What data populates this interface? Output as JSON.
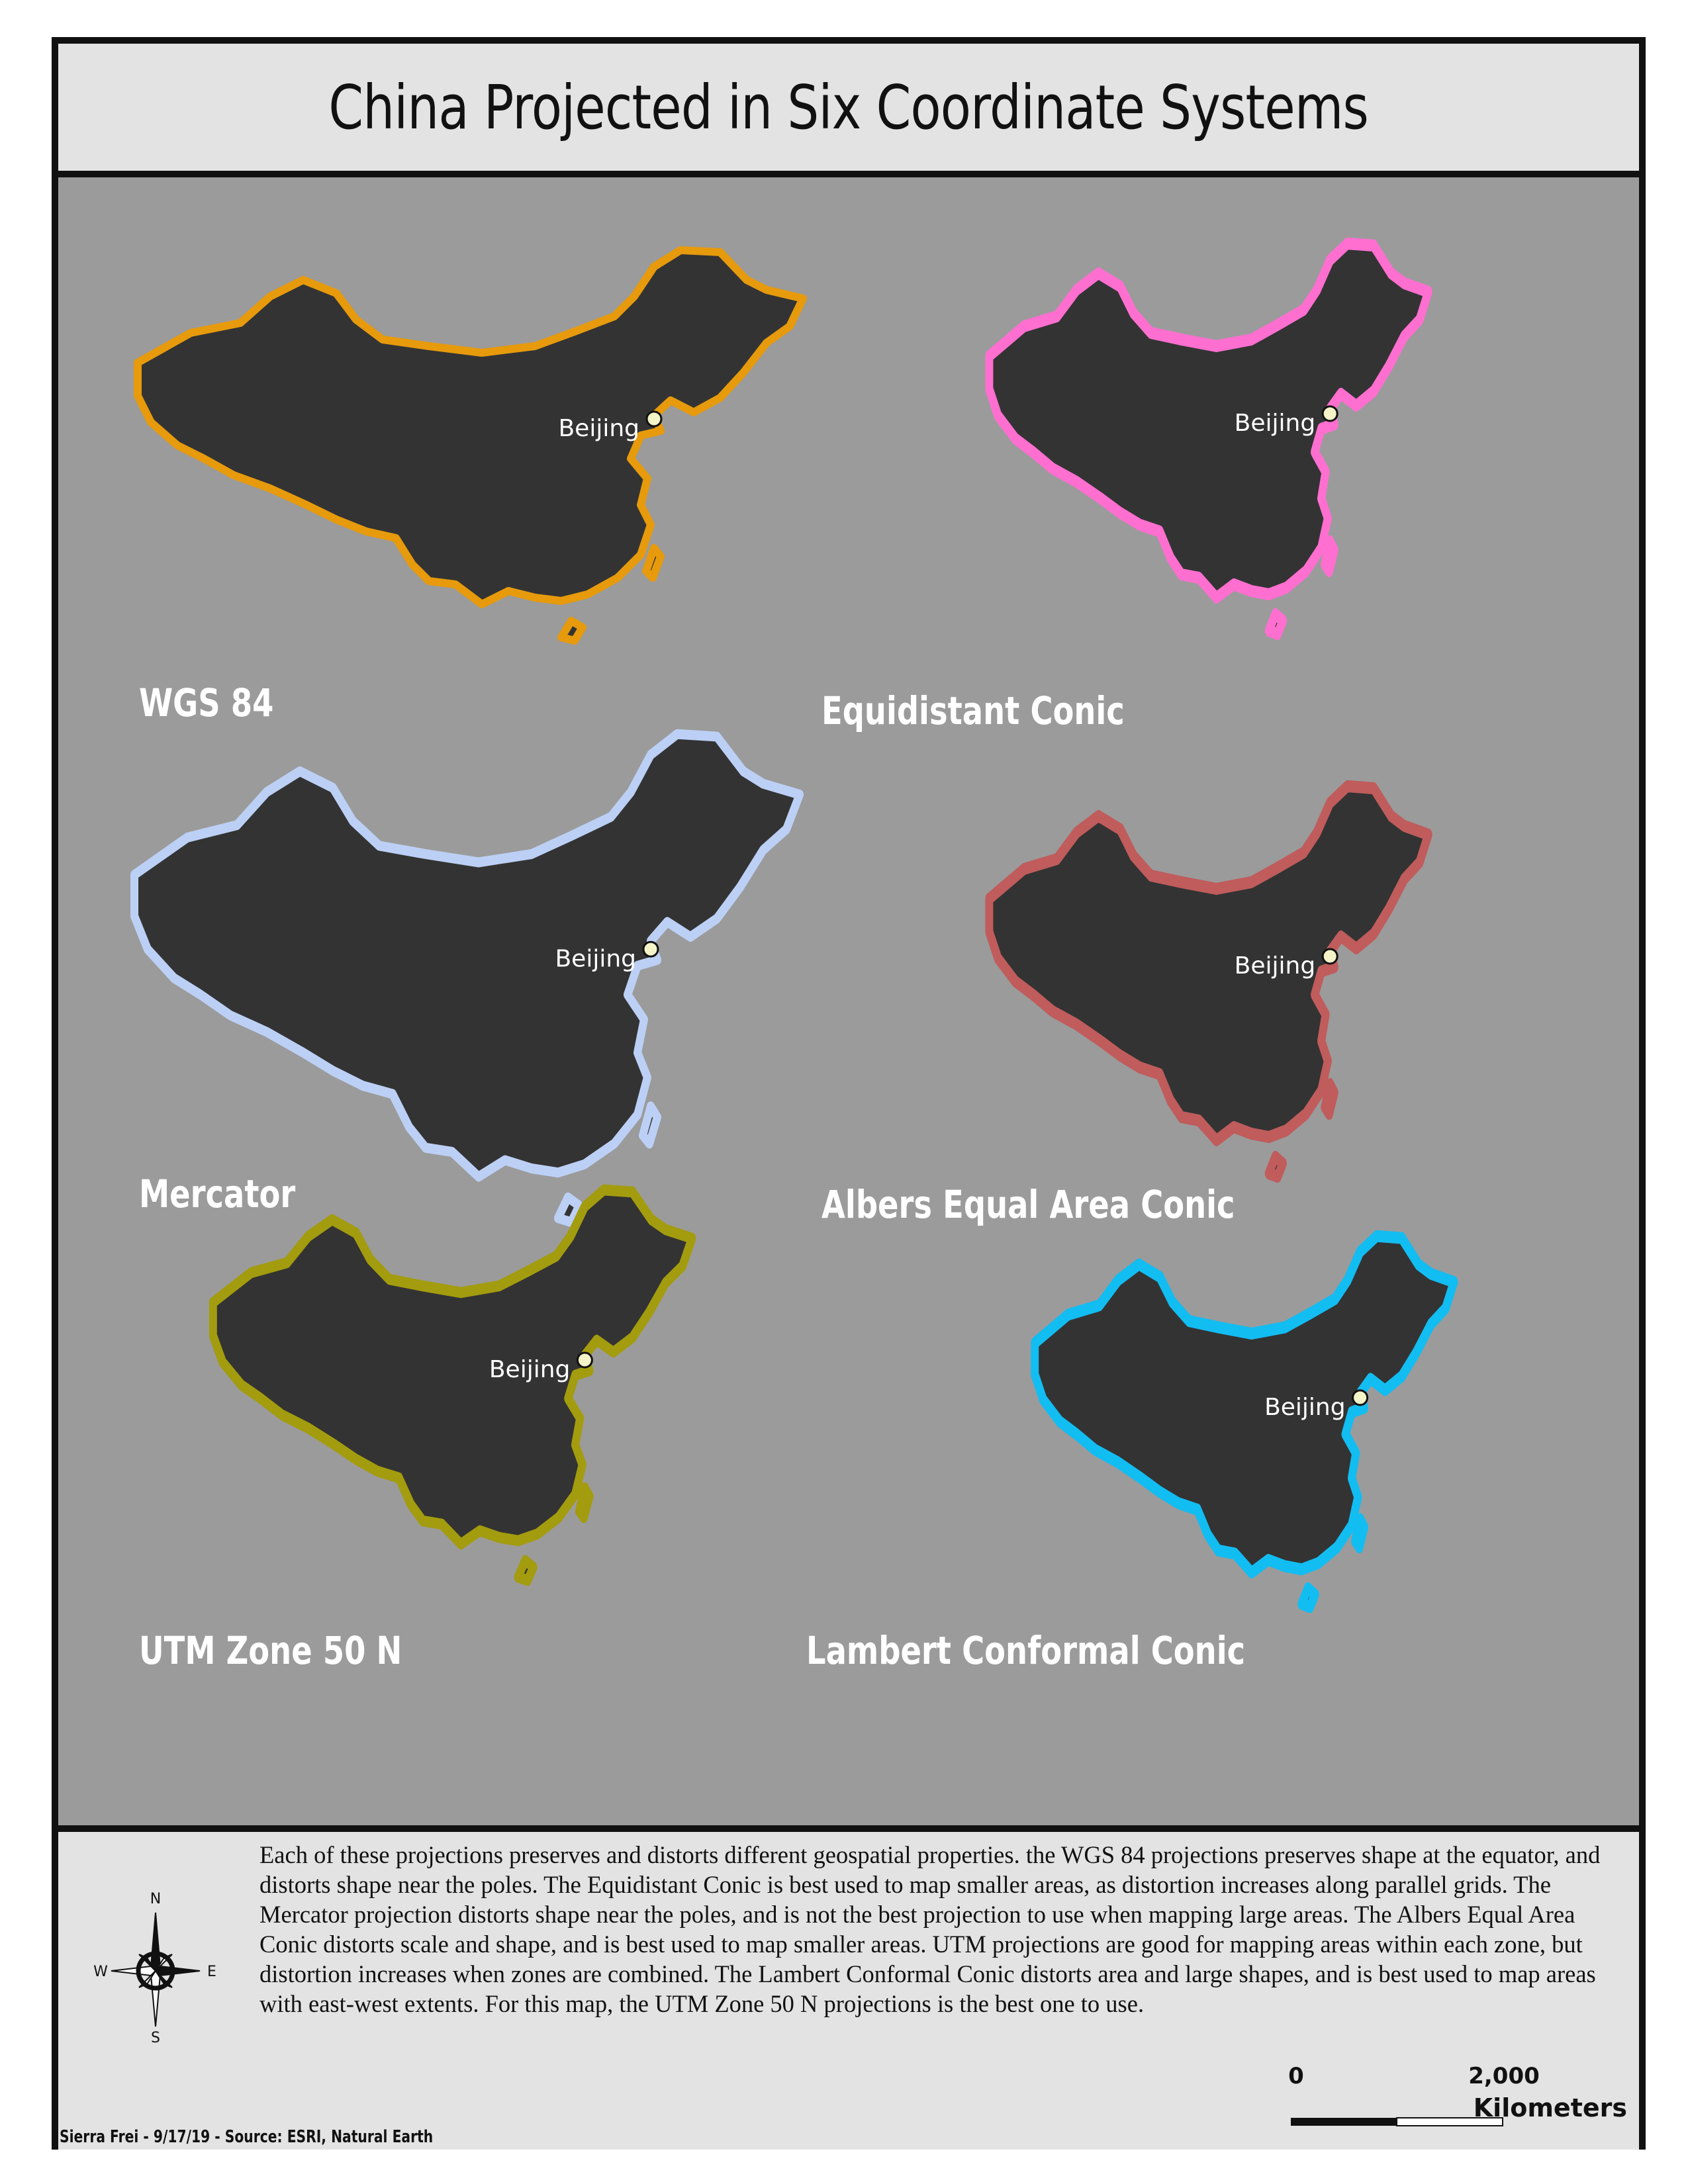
{
  "title": "China Projected in Six Coordinate Systems",
  "colors": {
    "map_background": "#9b9b9b",
    "land_fill": "#333333",
    "wgs84": "#e69a0c",
    "equidistant_conic": "#ff6fd0",
    "mercator": "#bcd0f5",
    "albers": "#c05c5c",
    "utm": "#a39c0e",
    "lambert": "#12bdf2",
    "city_point": "#f4f4c8"
  },
  "city_label": "Beijing",
  "projections": [
    {
      "name": "WGS 84"
    },
    {
      "name": "Equidistant Conic"
    },
    {
      "name": "Mercator"
    },
    {
      "name": "Albers Equal Area Conic"
    },
    {
      "name": "UTM Zone 50 N"
    },
    {
      "name": "Lambert Conformal Conic"
    }
  ],
  "description": "Each of these projections preserves and distorts different geospatial properties. the WGS 84 projections preserves shape at the equator, and distorts shape near the poles. The Equidistant Conic is best used to map smaller areas, as distortion increases along parallel grids. The Mercator projection distorts shape near the poles, and is not the best projection to use when mapping large areas. The Albers Equal Area Conic distorts scale and shape, and is best used to map smaller areas. UTM projections are good for mapping areas within each zone, but distortion increases when zones are combined. The Lambert Conformal Conic distorts area and large shapes, and is best used to  map areas with east-west extents. For this map, the UTM Zone 50 N projections is the best one to use.",
  "compass": {
    "n": "N",
    "e": "E",
    "s": "S",
    "w": "W"
  },
  "scale": {
    "start": "0",
    "end": "2,000",
    "unit": "Kilometers"
  },
  "credit": "Sierra Frei - 9/17/19 - Source: ESRI, Natural Earth"
}
